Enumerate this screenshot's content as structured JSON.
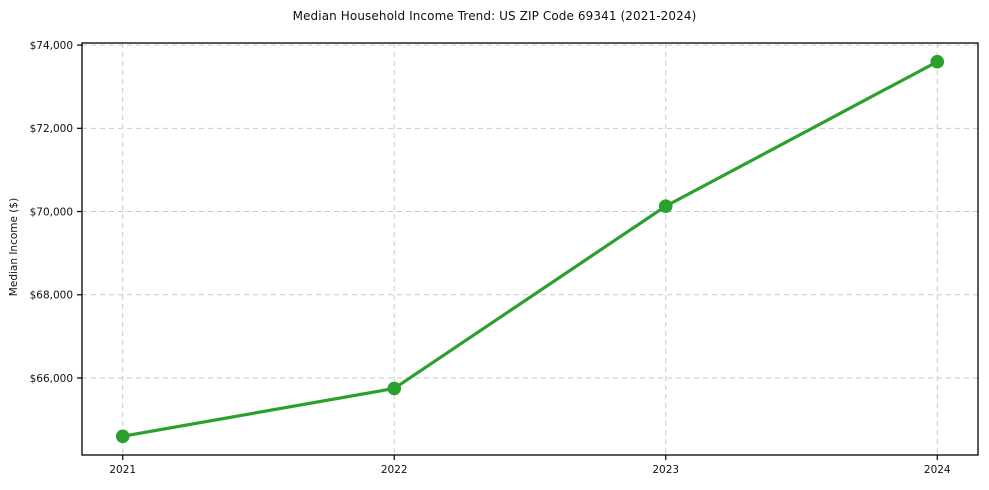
{
  "chart_data": {
    "type": "line",
    "title": "Median Household Income Trend: US ZIP Code 69341 (2021-2024)",
    "xlabel": "",
    "ylabel": "Median Income ($)",
    "x": [
      2021,
      2022,
      2023,
      2024
    ],
    "x_tick_labels": [
      "2021",
      "2022",
      "2023",
      "2024"
    ],
    "series": [
      {
        "name": "Median Household Income",
        "values": [
          64600,
          65750,
          70130,
          73600
        ]
      }
    ],
    "y_ticks": [
      66000,
      68000,
      70000,
      72000,
      74000
    ],
    "y_tick_labels": [
      "$66,000",
      "$68,000",
      "$70,000",
      "$72,000",
      "$74,000"
    ],
    "ylim": [
      64150,
      74050
    ],
    "xlim": [
      2020.85,
      2024.15
    ],
    "grid": true,
    "grid_style": "dashed",
    "legend_position": "none",
    "colors": {
      "line": "#2ca02c",
      "marker": "#2ca02c",
      "grid": "#c9c9c9",
      "spine": "#000000",
      "text": "#111111"
    }
  }
}
